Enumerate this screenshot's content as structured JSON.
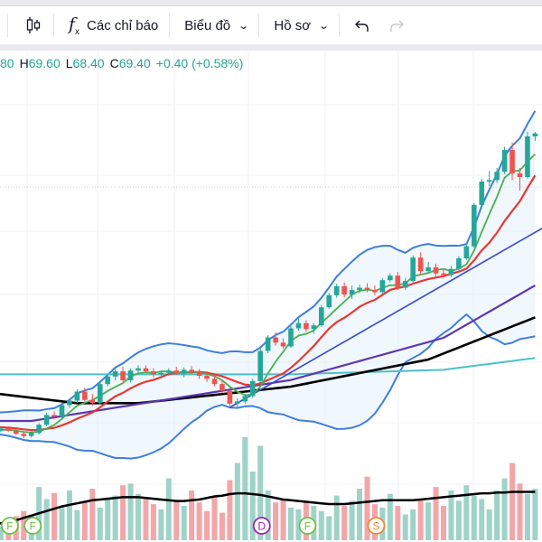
{
  "toolbar": {
    "indicators_label": "Các chỉ báo",
    "chart_label": "Biểu đồ",
    "profile_label": "Hồ sơ",
    "icons": [
      "candlestick-icon",
      "fx-icon",
      "chevron-down-icon",
      "undo-icon",
      "redo-icon"
    ]
  },
  "legend": {
    "open_tail": "80",
    "h_label": "H",
    "h_value": "69.60",
    "l_label": "L",
    "l_value": "68.40",
    "c_label": "C",
    "c_value": "69.40",
    "change": "+0.40 (+0.58%)"
  },
  "colors": {
    "up": "#26a69a",
    "down": "#ef5350",
    "up_volume": "#9fd3c7",
    "down_volume": "#f3a6a9",
    "ma_green": "#4caf50",
    "ma_red": "#e53935",
    "ma_purple": "#5e35b1",
    "ma_black": "#000000",
    "ma_cyan": "#4dc0c8",
    "bollinger": "#3f7fd9",
    "trendline": "#3949cf",
    "event_f": "#6cc04a",
    "event_d": "#9c27b0",
    "event_s": "#f0883e"
  },
  "chart_data": {
    "type": "candlestick",
    "title": "",
    "ohlc_legend": {
      "high": 69.6,
      "low": 68.4,
      "close": 69.4,
      "change": 0.4,
      "change_pct": 0.58
    },
    "ylim": [
      24,
      72
    ],
    "candles": [
      [
        30.2,
        30.6,
        29.8,
        30.1
      ],
      [
        30.1,
        30.3,
        29.6,
        29.9
      ],
      [
        29.9,
        30.4,
        29.7,
        30.2
      ],
      [
        30.2,
        30.5,
        29.8,
        29.9
      ],
      [
        29.9,
        30.2,
        29.3,
        29.5
      ],
      [
        29.5,
        29.8,
        28.9,
        29.2
      ],
      [
        29.2,
        29.8,
        29.0,
        29.6
      ],
      [
        29.6,
        30.9,
        29.4,
        30.7
      ],
      [
        30.7,
        32.3,
        30.5,
        32.0
      ],
      [
        32.0,
        32.5,
        31.4,
        31.8
      ],
      [
        31.8,
        33.6,
        31.6,
        33.3
      ],
      [
        33.3,
        34.2,
        32.9,
        33.9
      ],
      [
        33.9,
        35.4,
        33.6,
        35.1
      ],
      [
        35.1,
        35.6,
        33.8,
        34.0
      ],
      [
        34.0,
        34.8,
        33.2,
        33.6
      ],
      [
        33.6,
        36.4,
        33.4,
        36.1
      ],
      [
        36.1,
        37.4,
        35.8,
        37.1
      ],
      [
        37.1,
        38.1,
        36.6,
        37.8
      ],
      [
        37.8,
        38.4,
        36.4,
        36.6
      ],
      [
        36.6,
        38.2,
        36.3,
        37.9
      ],
      [
        37.9,
        38.6,
        37.5,
        38.2
      ],
      [
        38.2,
        38.6,
        37.6,
        37.8
      ],
      [
        37.8,
        38.2,
        37.0,
        37.4
      ],
      [
        37.4,
        37.9,
        36.8,
        37.6
      ],
      [
        37.6,
        38.2,
        37.2,
        37.9
      ],
      [
        37.9,
        38.4,
        37.3,
        37.5
      ],
      [
        37.5,
        38.3,
        37.0,
        38.0
      ],
      [
        38.0,
        38.5,
        37.4,
        37.7
      ],
      [
        37.7,
        38.1,
        36.8,
        37.2
      ],
      [
        37.2,
        37.8,
        36.4,
        36.8
      ],
      [
        36.8,
        37.4,
        35.8,
        36.1
      ],
      [
        36.1,
        36.6,
        34.9,
        35.2
      ],
      [
        35.2,
        35.6,
        33.2,
        33.5
      ],
      [
        33.5,
        34.2,
        33.0,
        33.8
      ],
      [
        33.8,
        34.8,
        33.5,
        34.5
      ],
      [
        34.5,
        36.8,
        34.3,
        36.5
      ],
      [
        36.5,
        40.8,
        36.3,
        40.5
      ],
      [
        40.5,
        42.6,
        40.2,
        42.3
      ],
      [
        42.3,
        43.0,
        41.2,
        41.6
      ],
      [
        41.6,
        42.2,
        40.8,
        41.1
      ],
      [
        41.1,
        43.8,
        40.9,
        43.5
      ],
      [
        43.5,
        44.8,
        43.2,
        44.2
      ],
      [
        44.2,
        44.6,
        43.0,
        43.4
      ],
      [
        43.4,
        44.2,
        42.8,
        43.9
      ],
      [
        43.9,
        46.6,
        43.7,
        46.3
      ],
      [
        46.3,
        48.2,
        46.1,
        47.9
      ],
      [
        47.9,
        49.4,
        47.6,
        49.1
      ],
      [
        49.1,
        49.6,
        47.6,
        48.0
      ],
      [
        48.0,
        49.2,
        47.4,
        48.6
      ],
      [
        48.6,
        49.3,
        48.2,
        48.9
      ],
      [
        48.9,
        49.5,
        48.3,
        48.6
      ],
      [
        48.6,
        49.2,
        47.9,
        48.3
      ],
      [
        48.3,
        50.2,
        48.1,
        49.9
      ],
      [
        49.9,
        50.8,
        49.6,
        50.5
      ],
      [
        50.5,
        51.0,
        48.6,
        48.9
      ],
      [
        48.9,
        50.2,
        48.6,
        49.8
      ],
      [
        49.8,
        53.2,
        49.6,
        52.9
      ],
      [
        52.9,
        53.6,
        50.6,
        51.1
      ],
      [
        51.1,
        52.3,
        50.8,
        51.6
      ],
      [
        51.6,
        52.1,
        50.4,
        50.8
      ],
      [
        50.8,
        51.4,
        50.2,
        50.6
      ],
      [
        50.6,
        51.8,
        50.3,
        51.4
      ],
      [
        51.4,
        53.1,
        51.2,
        52.8
      ],
      [
        52.8,
        54.8,
        52.6,
        54.4
      ],
      [
        54.4,
        60.2,
        54.2,
        59.9
      ],
      [
        59.9,
        63.4,
        59.6,
        63.0
      ],
      [
        63.0,
        64.4,
        62.4,
        63.2
      ],
      [
        63.2,
        64.8,
        62.8,
        64.3
      ],
      [
        64.3,
        67.6,
        64.0,
        67.2
      ],
      [
        67.2,
        68.2,
        63.2,
        64.1
      ],
      [
        64.1,
        64.8,
        61.8,
        63.6
      ],
      [
        63.6,
        69.6,
        63.4,
        69.0
      ],
      [
        69.0,
        69.6,
        68.4,
        69.4
      ]
    ],
    "volumes": [
      18,
      22,
      16,
      14,
      28,
      34,
      30,
      62,
      48,
      55,
      40,
      58,
      35,
      44,
      60,
      38,
      48,
      52,
      64,
      66,
      54,
      50,
      42,
      36,
      72,
      46,
      40,
      58,
      44,
      34,
      50,
      32,
      70,
      90,
      120,
      80,
      110,
      58,
      44,
      48,
      38,
      36,
      46,
      40,
      34,
      28,
      52,
      40,
      46,
      60,
      74,
      42,
      38,
      54,
      40,
      30,
      36,
      48,
      44,
      62,
      40,
      58,
      46,
      64,
      52,
      48,
      36,
      58,
      72,
      90,
      66,
      54,
      60
    ],
    "volume_ma": [
      20,
      21,
      22,
      24,
      26,
      29,
      32,
      35,
      38,
      41,
      44,
      46,
      48,
      50,
      52,
      53,
      54,
      55,
      56,
      56,
      56,
      55,
      54,
      53,
      52,
      51,
      51,
      52,
      53,
      55,
      57,
      58,
      60,
      61,
      61,
      60,
      59,
      57,
      55,
      53,
      52,
      51,
      50,
      49,
      48,
      47,
      47,
      47,
      48,
      49,
      50,
      51,
      52,
      52,
      52,
      52,
      52,
      53,
      54,
      55,
      56,
      57,
      58,
      59,
      60,
      61,
      61,
      62,
      62,
      63,
      63,
      63,
      63
    ],
    "overlays": {
      "ma_fast": "green",
      "ma_mid": "red",
      "ma_slow": "purple",
      "ma_long": "black",
      "ma_flat": "cyan",
      "bollinger_bands": "blue"
    },
    "events": [
      {
        "label": "F",
        "index": 2
      },
      {
        "label": "F",
        "index": 5
      },
      {
        "label": "D",
        "index": 35
      },
      {
        "label": "F",
        "index": 41
      },
      {
        "label": "S",
        "index": 50
      }
    ]
  }
}
